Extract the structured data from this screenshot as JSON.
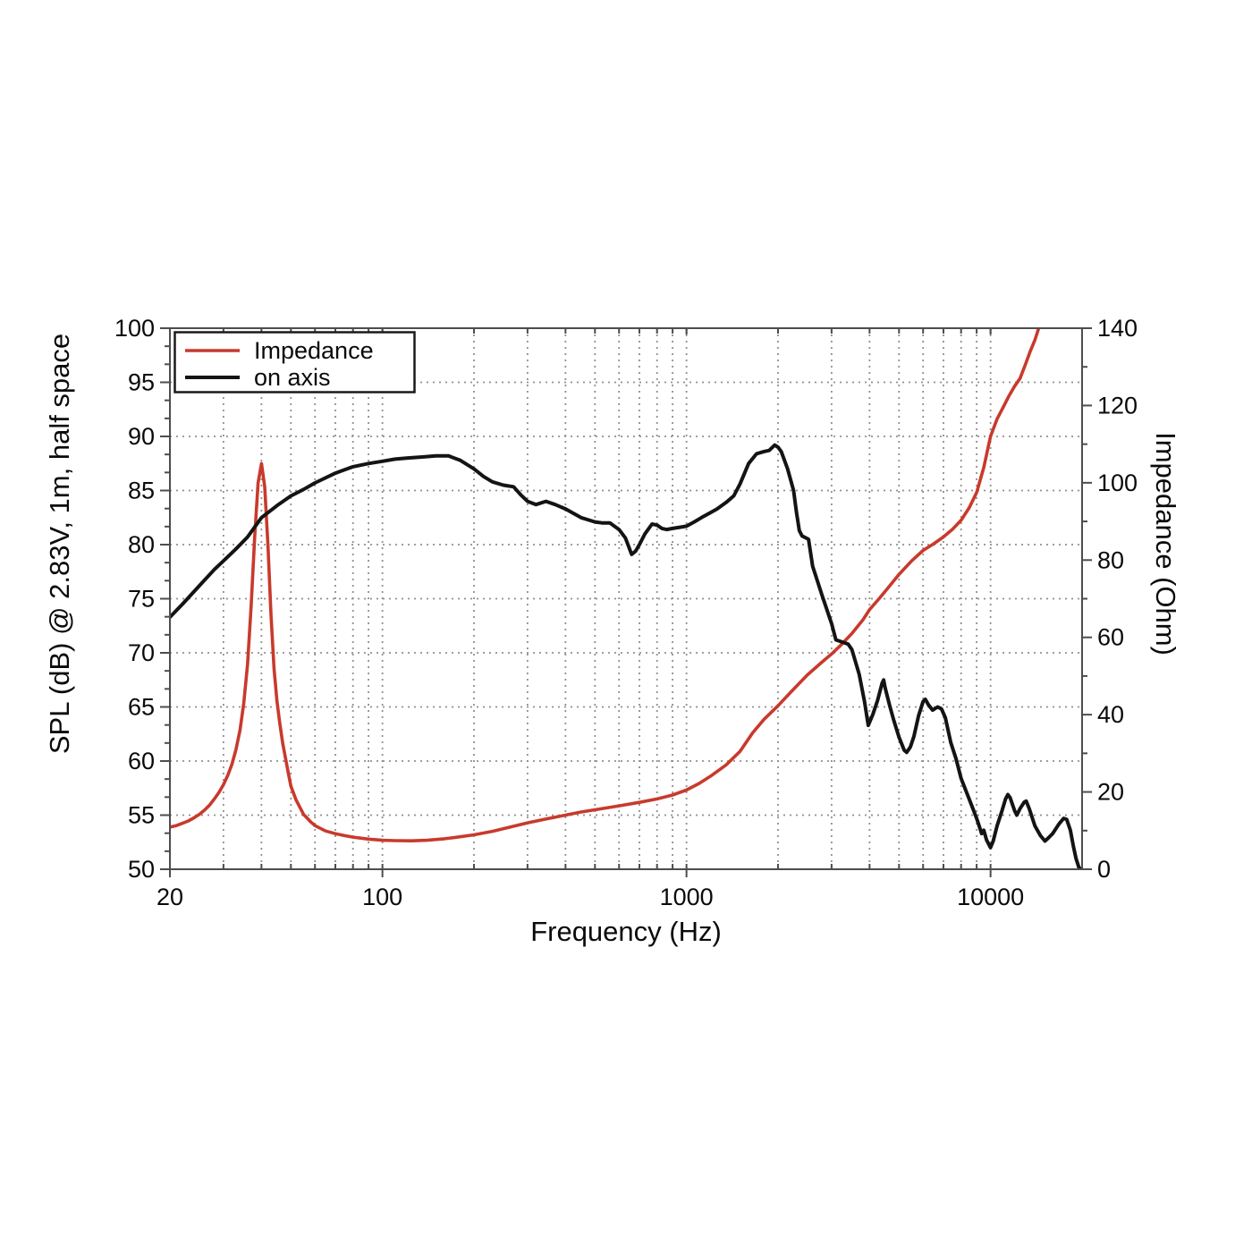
{
  "chart_data": {
    "type": "line",
    "title": "",
    "xlabel": "Frequency (Hz)",
    "ylabel_left": "SPL (dB) @ 2.83V, 1m, half space",
    "ylabel_right": "Impedance (Ohm)",
    "x_scale": "log",
    "x_range": [
      20,
      20000
    ],
    "x_major_ticks": [
      20,
      100,
      1000,
      10000
    ],
    "x_tick_labels": [
      "20",
      "100",
      "1000",
      "10000"
    ],
    "y_left_range": [
      50,
      100
    ],
    "y_left_ticks": [
      50,
      55,
      60,
      65,
      70,
      75,
      80,
      85,
      90,
      95,
      100
    ],
    "y_right_range": [
      0,
      140
    ],
    "y_right_ticks": [
      0,
      20,
      40,
      60,
      80,
      100,
      120,
      140
    ],
    "grid": "dotted",
    "legend": {
      "position": "top-left",
      "entries": [
        {
          "label": "Impedance",
          "color": "#c83a2c"
        },
        {
          "label": "on axis",
          "color": "#141414"
        }
      ]
    },
    "colors": {
      "impedance": "#c83a2c",
      "on_axis": "#141414",
      "grid": "#909090",
      "frame": "#4d4d4d",
      "text": "#0a0a0a",
      "background": "#ffffff"
    },
    "series": [
      {
        "name": "Impedance",
        "axis": "right",
        "unit": "Ohm",
        "color": "#c83a2c",
        "points": [
          [
            20,
            10.9
          ],
          [
            21,
            11.3
          ],
          [
            22,
            11.9
          ],
          [
            23,
            12.5
          ],
          [
            24,
            13.3
          ],
          [
            25,
            14.2
          ],
          [
            26,
            15.3
          ],
          [
            27,
            16.6
          ],
          [
            28,
            18.2
          ],
          [
            29,
            19.9
          ],
          [
            30,
            21.9
          ],
          [
            31,
            24.3
          ],
          [
            32,
            27.2
          ],
          [
            33,
            31
          ],
          [
            34,
            36
          ],
          [
            35,
            43
          ],
          [
            36,
            53
          ],
          [
            37,
            68
          ],
          [
            38,
            86
          ],
          [
            39,
            100
          ],
          [
            40,
            105
          ],
          [
            41,
            99
          ],
          [
            42,
            84
          ],
          [
            43,
            66
          ],
          [
            44,
            52
          ],
          [
            45,
            43.5
          ],
          [
            46,
            37.5
          ],
          [
            47,
            32.5
          ],
          [
            48,
            28.7
          ],
          [
            49,
            25
          ],
          [
            50,
            21.5
          ],
          [
            52,
            17.9
          ],
          [
            55,
            14.2
          ],
          [
            58,
            12.3
          ],
          [
            60,
            11.3
          ],
          [
            65,
            9.9
          ],
          [
            70,
            9.2
          ],
          [
            75,
            8.7
          ],
          [
            80,
            8.3
          ],
          [
            90,
            7.8
          ],
          [
            100,
            7.5
          ],
          [
            110,
            7.4
          ],
          [
            125,
            7.35
          ],
          [
            140,
            7.5
          ],
          [
            160,
            7.9
          ],
          [
            180,
            8.4
          ],
          [
            200,
            8.9
          ],
          [
            230,
            9.8
          ],
          [
            260,
            10.8
          ],
          [
            300,
            12
          ],
          [
            350,
            13.1
          ],
          [
            400,
            14
          ],
          [
            450,
            14.8
          ],
          [
            500,
            15.4
          ],
          [
            600,
            16.4
          ],
          [
            700,
            17.3
          ],
          [
            800,
            18.2
          ],
          [
            900,
            19.2
          ],
          [
            1000,
            20.5
          ],
          [
            1100,
            22.2
          ],
          [
            1200,
            24.1
          ],
          [
            1350,
            27
          ],
          [
            1500,
            30.5
          ],
          [
            1650,
            35.3
          ],
          [
            1800,
            38.8
          ],
          [
            2000,
            42.3
          ],
          [
            2200,
            45.8
          ],
          [
            2500,
            50.3
          ],
          [
            2800,
            53.7
          ],
          [
            3000,
            55.7
          ],
          [
            3200,
            57.8
          ],
          [
            3500,
            61
          ],
          [
            3800,
            64.5
          ],
          [
            4000,
            67.2
          ],
          [
            4300,
            70
          ],
          [
            4600,
            72.8
          ],
          [
            5000,
            76.3
          ],
          [
            5500,
            79.8
          ],
          [
            6000,
            82.5
          ],
          [
            6500,
            84.2
          ],
          [
            7000,
            86
          ],
          [
            7500,
            88
          ],
          [
            8000,
            90.3
          ],
          [
            8500,
            93.5
          ],
          [
            9000,
            97.5
          ],
          [
            9500,
            104
          ],
          [
            10000,
            112
          ],
          [
            10500,
            116.5
          ],
          [
            11000,
            119.5
          ],
          [
            11500,
            122.5
          ],
          [
            12000,
            125
          ],
          [
            12500,
            127
          ],
          [
            13000,
            130.5
          ],
          [
            13500,
            134
          ],
          [
            14000,
            137
          ],
          [
            14400,
            140
          ],
          [
            14700,
            143.5
          ]
        ]
      },
      {
        "name": "on axis",
        "axis": "left",
        "unit": "dB",
        "color": "#141414",
        "points": [
          [
            20,
            73.3
          ],
          [
            22,
            74.5
          ],
          [
            25,
            76.2
          ],
          [
            28,
            77.7
          ],
          [
            30,
            78.5
          ],
          [
            33,
            79.6
          ],
          [
            36,
            80.7
          ],
          [
            40,
            82.5
          ],
          [
            45,
            83.6
          ],
          [
            50,
            84.5
          ],
          [
            55,
            85.1
          ],
          [
            60,
            85.7
          ],
          [
            70,
            86.6
          ],
          [
            80,
            87.2
          ],
          [
            90,
            87.5
          ],
          [
            100,
            87.7
          ],
          [
            110,
            87.9
          ],
          [
            120,
            88
          ],
          [
            135,
            88.1
          ],
          [
            150,
            88.2
          ],
          [
            165,
            88.2
          ],
          [
            180,
            87.8
          ],
          [
            200,
            87
          ],
          [
            215,
            86.3
          ],
          [
            230,
            85.8
          ],
          [
            250,
            85.5
          ],
          [
            270,
            85.35
          ],
          [
            285,
            84.6
          ],
          [
            300,
            84
          ],
          [
            320,
            83.7
          ],
          [
            345,
            84
          ],
          [
            370,
            83.7
          ],
          [
            400,
            83.3
          ],
          [
            450,
            82.5
          ],
          [
            500,
            82.1
          ],
          [
            530,
            82
          ],
          [
            560,
            82
          ],
          [
            600,
            81.4
          ],
          [
            630,
            80.6
          ],
          [
            660,
            79.1
          ],
          [
            680,
            79.4
          ],
          [
            700,
            80
          ],
          [
            730,
            81
          ],
          [
            770,
            81.9
          ],
          [
            800,
            81.8
          ],
          [
            830,
            81.5
          ],
          [
            860,
            81.4
          ],
          [
            900,
            81.5
          ],
          [
            950,
            81.6
          ],
          [
            1000,
            81.7
          ],
          [
            1060,
            82.1
          ],
          [
            1120,
            82.5
          ],
          [
            1190,
            82.9
          ],
          [
            1260,
            83.3
          ],
          [
            1350,
            83.9
          ],
          [
            1430,
            84.5
          ],
          [
            1500,
            85.6
          ],
          [
            1600,
            87.5
          ],
          [
            1700,
            88.4
          ],
          [
            1800,
            88.6
          ],
          [
            1870,
            88.7
          ],
          [
            1950,
            89.2
          ],
          [
            2000,
            89
          ],
          [
            2050,
            88.6
          ],
          [
            2150,
            87
          ],
          [
            2250,
            85
          ],
          [
            2300,
            83
          ],
          [
            2350,
            81.3
          ],
          [
            2400,
            80.8
          ],
          [
            2520,
            80.5
          ],
          [
            2600,
            78
          ],
          [
            2800,
            75.2
          ],
          [
            3000,
            72.7
          ],
          [
            3100,
            71.2
          ],
          [
            3250,
            71
          ],
          [
            3400,
            70.8
          ],
          [
            3500,
            70.3
          ],
          [
            3700,
            68
          ],
          [
            3850,
            65.5
          ],
          [
            3960,
            63.3
          ],
          [
            4100,
            64.3
          ],
          [
            4250,
            65.6
          ],
          [
            4400,
            67.2
          ],
          [
            4450,
            67.5
          ],
          [
            4500,
            66.8
          ],
          [
            4650,
            65.2
          ],
          [
            4800,
            63.8
          ],
          [
            5000,
            62.2
          ],
          [
            5200,
            61
          ],
          [
            5300,
            60.8
          ],
          [
            5450,
            61.3
          ],
          [
            5600,
            62.3
          ],
          [
            5800,
            64.2
          ],
          [
            6000,
            65.5
          ],
          [
            6100,
            65.7
          ],
          [
            6250,
            65.2
          ],
          [
            6450,
            64.7
          ],
          [
            6700,
            65
          ],
          [
            6900,
            64.8
          ],
          [
            7100,
            64
          ],
          [
            7400,
            61.7
          ],
          [
            7700,
            60.2
          ],
          [
            8000,
            58.4
          ],
          [
            8500,
            56.5
          ],
          [
            9000,
            54.7
          ],
          [
            9200,
            53.9
          ],
          [
            9350,
            53.3
          ],
          [
            9500,
            53.6
          ],
          [
            9700,
            52.7
          ],
          [
            10000,
            52
          ],
          [
            10200,
            52.6
          ],
          [
            10500,
            54
          ],
          [
            10900,
            55.4
          ],
          [
            11200,
            56.5
          ],
          [
            11400,
            56.9
          ],
          [
            11600,
            56.6
          ],
          [
            12000,
            55.4
          ],
          [
            12200,
            55
          ],
          [
            12500,
            55.6
          ],
          [
            12900,
            56.2
          ],
          [
            13100,
            56.3
          ],
          [
            13400,
            55.6
          ],
          [
            14000,
            54
          ],
          [
            14600,
            53.1
          ],
          [
            15100,
            52.6
          ],
          [
            15500,
            52.9
          ],
          [
            16000,
            53.3
          ],
          [
            16800,
            54.2
          ],
          [
            17400,
            54.7
          ],
          [
            17800,
            54.6
          ],
          [
            18300,
            53.6
          ],
          [
            18700,
            52.2
          ],
          [
            19100,
            51
          ],
          [
            19500,
            50.2
          ],
          [
            19800,
            50
          ]
        ]
      }
    ]
  }
}
